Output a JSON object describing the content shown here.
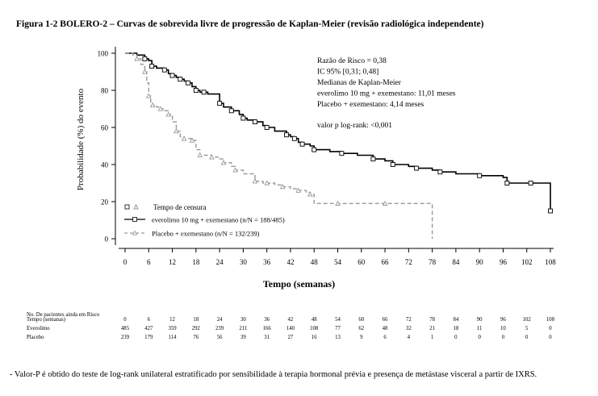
{
  "figure": {
    "title": "Figura 1-2 BOLERO-2 – Curvas de sobrevida livre de progressão de Kaplan-Meier (revisão radiológica independente)",
    "footnote": "- Valor-P é obtido do teste de log-rank unilateral estratificado por sensibilidade à terapia hormonal prévia e presença de metástase visceral a partir de IXRS."
  },
  "chart_data": {
    "type": "line",
    "xlabel": "Tempo (semanas)",
    "ylabel": "Probabilidade (%) do evento",
    "xlim": [
      0,
      108
    ],
    "ylim": [
      0,
      100
    ],
    "xticks": [
      "0",
      "6",
      "12",
      "18",
      "24",
      "30",
      "36",
      "42",
      "48",
      "54",
      "60",
      "66",
      "72",
      "78",
      "84",
      "90",
      "96",
      "102",
      "108"
    ],
    "yticks": [
      "0",
      "20",
      "40",
      "60",
      "80",
      "100"
    ],
    "stats": [
      "Razão de Risco = 0,38",
      "IC 95% [0,31; 0,48]",
      "Medianas de Kaplan-Meier",
      "everolimo 10 mg + exemestano: 11,01 meses",
      "Placebo + exemestano: 4,14 meses",
      "valor p log-rank: <0,001"
    ],
    "legend": {
      "censor_label": "Tempo de censura",
      "placement": "bottom-left"
    },
    "series": [
      {
        "name": "everolimo 10 mg + exemestano (n/N = 188/485)",
        "color": "#000000",
        "style": "solid",
        "x": [
          0,
          3,
          5,
          6,
          6.8,
          8,
          10,
          11,
          12,
          13,
          14,
          15,
          16,
          17,
          18,
          19,
          20,
          21,
          24,
          25,
          27,
          29,
          30,
          31,
          33,
          35,
          36,
          38,
          41,
          42,
          43,
          44,
          45,
          47,
          48,
          52,
          55,
          59,
          63,
          66,
          68,
          72,
          74,
          78,
          80,
          84,
          90,
          96,
          97,
          102,
          103,
          107,
          108
        ],
        "y": [
          100,
          99,
          97,
          96,
          93,
          92,
          91,
          89,
          88,
          87,
          86,
          85,
          84,
          82,
          80,
          79,
          79,
          78,
          73,
          71,
          69,
          67,
          65,
          64,
          63,
          61,
          60,
          58,
          56,
          55,
          54,
          52,
          51,
          50,
          48,
          47,
          46,
          45,
          43,
          42,
          40,
          39,
          38,
          37,
          36,
          35,
          34,
          33,
          30,
          30,
          30,
          30,
          15
        ]
      },
      {
        "name": "Placebo + exemestano (n/N = 132/239)",
        "color": "#999999",
        "style": "dashed",
        "x": [
          0,
          2,
          3,
          4,
          5,
          5.5,
          6,
          6.5,
          7,
          8,
          9,
          10,
          11,
          12,
          13,
          14,
          15,
          16,
          17,
          18,
          19,
          20,
          22,
          24,
          25,
          27,
          28,
          30,
          33,
          35,
          36,
          38,
          40,
          42,
          44,
          46,
          47,
          48,
          54,
          60,
          66,
          72,
          78
        ],
        "y": [
          100,
          99,
          97,
          94,
          90,
          84,
          77,
          73,
          72,
          71,
          70,
          69,
          67,
          63,
          58,
          55,
          54,
          54,
          53,
          48,
          45,
          45,
          44,
          43,
          41,
          39,
          37,
          35,
          31,
          30,
          30,
          29,
          28,
          27,
          26,
          25,
          24,
          19,
          19,
          19,
          19,
          19,
          0
        ]
      }
    ],
    "risk_table": {
      "header": "No. De pacientes ainda em Risco",
      "rows": [
        {
          "label": "Tempo (semanas)",
          "values": [
            "0",
            "6",
            "12",
            "18",
            "24",
            "30",
            "36",
            "42",
            "48",
            "54",
            "60",
            "66",
            "72",
            "78",
            "84",
            "90",
            "96",
            "102",
            "108"
          ]
        },
        {
          "label": "Everolimo",
          "values": [
            "485",
            "427",
            "359",
            "292",
            "239",
            "211",
            "166",
            "140",
            "108",
            "77",
            "62",
            "48",
            "32",
            "21",
            "18",
            "11",
            "10",
            "5",
            "0"
          ]
        },
        {
          "label": "Placebo",
          "values": [
            "239",
            "179",
            "114",
            "76",
            "56",
            "39",
            "31",
            "27",
            "16",
            "13",
            "9",
            "6",
            "4",
            "1",
            "0",
            "0",
            "0",
            "0",
            "0"
          ]
        }
      ]
    }
  }
}
